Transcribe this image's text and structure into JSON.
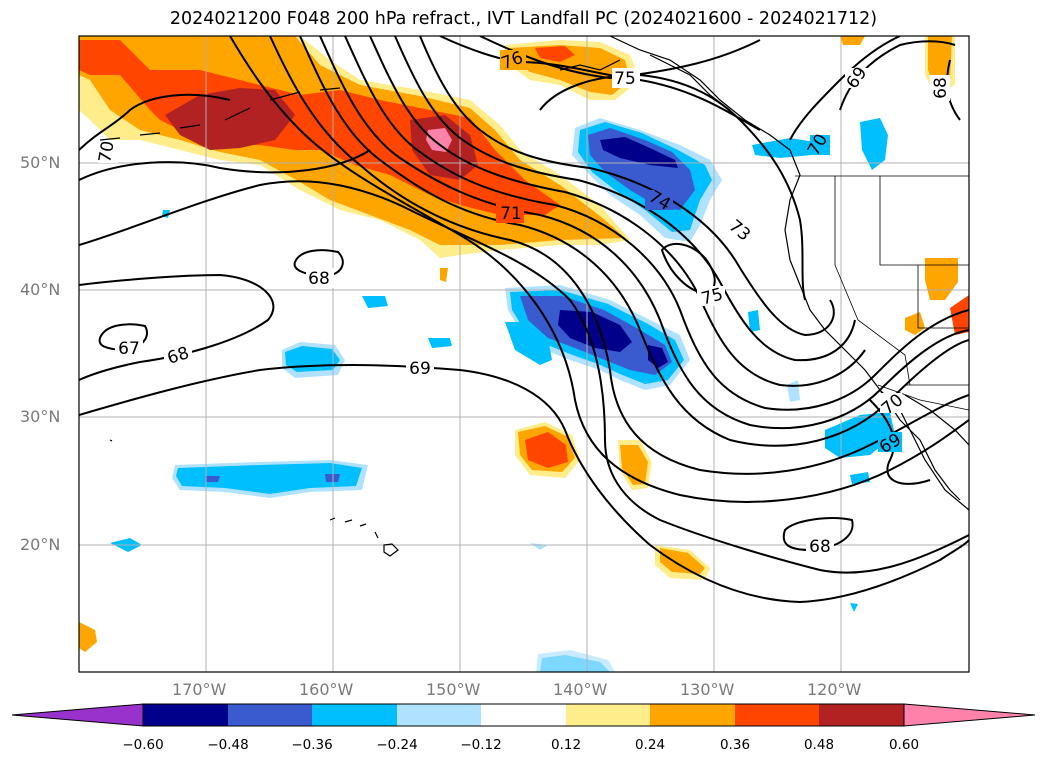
{
  "title": "2024021200 F048 200 hPa refract., IVT Landfall PC (2024021600 - 2024021712)",
  "map": {
    "lon_labels": [
      "170°W",
      "160°W",
      "150°W",
      "140°W",
      "130°W",
      "120°W"
    ],
    "lat_labels": [
      "50°N",
      "40°N",
      "30°N",
      "20°N"
    ],
    "contour_labels": [
      "76",
      "75",
      "69",
      "68",
      "70",
      "71",
      "74",
      "73",
      "75",
      "68",
      "67",
      "68",
      "69",
      "70",
      "69",
      "68"
    ],
    "fill_colors": {
      "neg_060": "#9d33d6",
      "neg_048": "#00008b",
      "neg_036": "#3a5bd0",
      "neg_024": "#00bfff",
      "neg_012": "#b0e2ff",
      "pos_012": "#ffec8b",
      "pos_024": "#ffa500",
      "pos_036": "#ff4500",
      "pos_048": "#b22222",
      "pos_060": "#ff82ab"
    }
  },
  "colorbar": {
    "ticks": [
      "−0.60",
      "−0.48",
      "−0.36",
      "−0.24",
      "−0.12",
      "0.12",
      "0.24",
      "0.36",
      "0.48",
      "0.60"
    ],
    "colors": [
      "#9932cc",
      "#00008b",
      "#3a5bd0",
      "#00bfff",
      "#b0e2ff",
      "#ffffff",
      "#ffec8b",
      "#ffa500",
      "#ff4500",
      "#b22222",
      "#ff82ab"
    ]
  }
}
